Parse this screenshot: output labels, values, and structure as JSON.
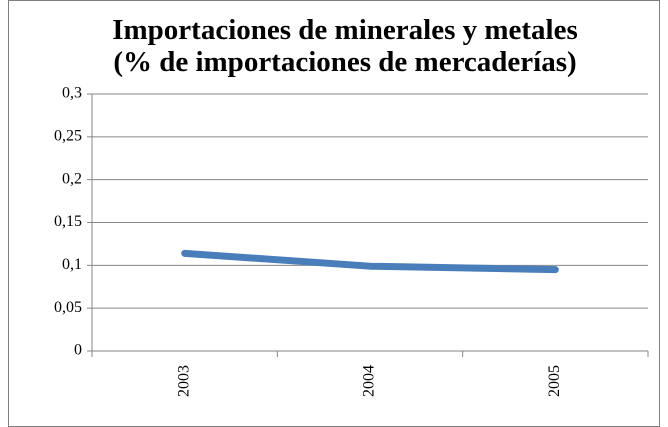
{
  "chart_data": {
    "type": "line",
    "title": "Importaciones de minerales y metales (% de importaciones de mercaderías)",
    "categories": [
      "2003",
      "2004",
      "2005"
    ],
    "series": [
      {
        "name": "Importaciones de minerales y metales",
        "color": "#4a7ebb",
        "values": [
          0.114,
          0.099,
          0.095
        ]
      }
    ],
    "ylim": [
      0,
      0.3
    ],
    "yticks": [
      0,
      {
        "value": 0.05,
        "label": "0,05"
      },
      {
        "value": 0.1,
        "label": "0,1"
      },
      {
        "value": 0.15,
        "label": "0,15"
      },
      {
        "value": 0.2,
        "label": "0,2"
      },
      {
        "value": 0.25,
        "label": "0,25"
      },
      {
        "value": 0.3,
        "label": "0,3"
      }
    ],
    "grid": true
  }
}
